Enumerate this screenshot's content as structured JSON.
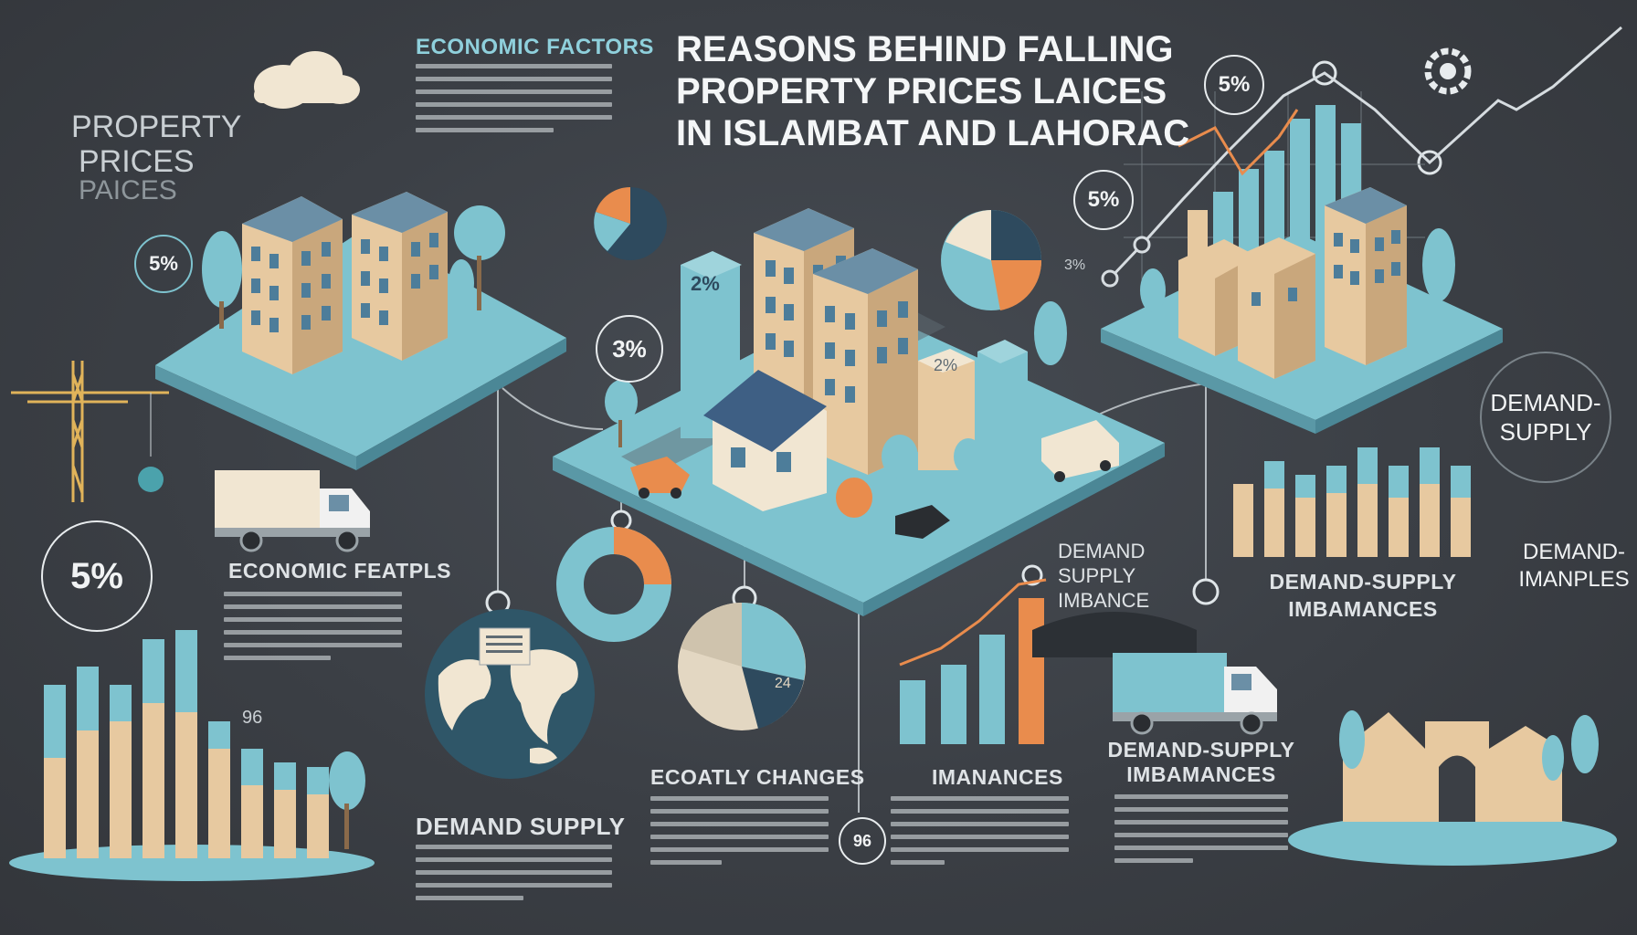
{
  "title_lines": [
    "REASONS BEHIND FALLING",
    "PROPERTY PRICES LAICES",
    "IN ISLAMBAT AND LAHORAC"
  ],
  "side_title_lines": [
    "PROPERTY",
    "PRICES",
    "PAICES"
  ],
  "sections": {
    "economic_factors_top": "ECONOMIC FACTORS",
    "economic_factors_left": "ECONOMIC FEATPLS",
    "demand_supply_left": "DEMAND SUPPLY",
    "ecoatly_changes": "ECOATLY CHANGES",
    "imanances": "IMANANCES",
    "demand_supply_imbalance_center": "DEMAND SUPPLY IMBANCE",
    "demand_supply_imbamances_right": "DEMAND-SUPPLY IMBAMANCES",
    "demand_supply_imbamances_bottom": "DEMAND-SUPPLY IMBAMANCES",
    "demand_supply_circle": "DEMAND-SUPPLY",
    "demand_imanples": "DEMAND-IMANPLES"
  },
  "badges": {
    "b1": "5%",
    "b2": "5%",
    "b3": "3%",
    "b4": "5%",
    "b5": "5%",
    "b6": "96"
  },
  "small_labels": {
    "tower_left": "2%",
    "tower_right": "2%",
    "pie_center": "24",
    "near_bars": "96",
    "pie_side": "3%"
  },
  "colors": {
    "background": "#3b3f45",
    "teal": "#7ec3cf",
    "tan": "#e7c9a0",
    "orange": "#e98c4d",
    "navy": "#2e4a5e",
    "cream": "#f1e6d2"
  },
  "icons": [
    "cloud-icon",
    "crane-icon",
    "truck-icon",
    "globe-icon",
    "gear-icon",
    "tree-icon",
    "car-icon"
  ]
}
